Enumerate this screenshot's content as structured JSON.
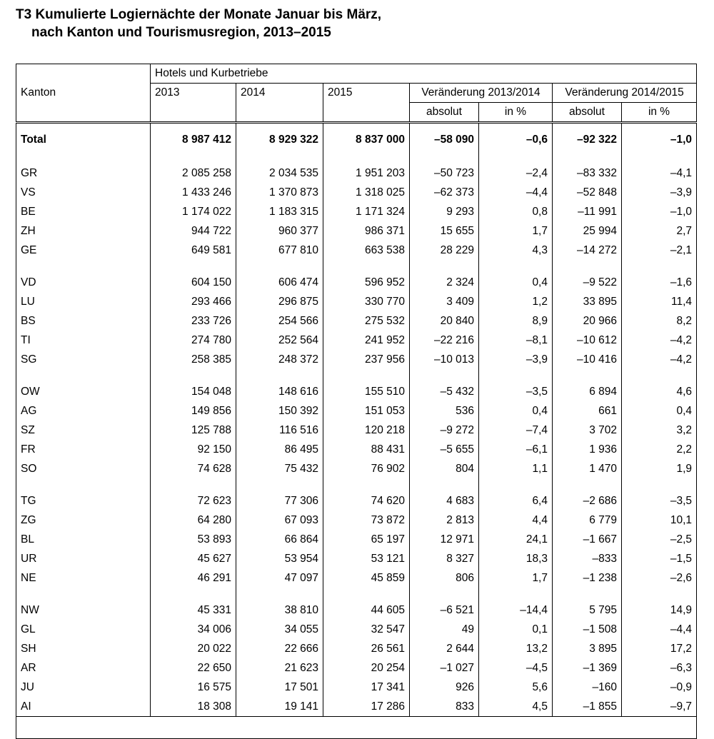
{
  "title": {
    "line1": "T3 Kumulierte Logiernächte der Monate Januar bis März,",
    "line2": "nach Kanton und Tourismusregion, 2013–2015"
  },
  "header": {
    "kanton": "Kanton",
    "group": "Hotels und Kurbetriebe",
    "y2013": "2013",
    "y2014": "2014",
    "y2015": "2015",
    "chg1": "Veränderung 2013/2014",
    "chg2": "Veränderung 2014/2015",
    "abs": "absolut",
    "pct": "in %"
  },
  "total": [
    "Total",
    "8 987 412",
    "8 929 322",
    "8 837 000",
    "–58 090",
    "–0,6",
    "–92 322",
    "–1,0"
  ],
  "groups": [
    [
      [
        "GR",
        "2 085 258",
        "2 034 535",
        "1 951 203",
        "–50 723",
        "–2,4",
        "–83 332",
        "–4,1"
      ],
      [
        "VS",
        "1 433 246",
        "1 370 873",
        "1 318 025",
        "–62 373",
        "–4,4",
        "–52 848",
        "–3,9"
      ],
      [
        "BE",
        "1 174 022",
        "1 183 315",
        "1 171 324",
        "9 293",
        "0,8",
        "–11 991",
        "–1,0"
      ],
      [
        "ZH",
        "944 722",
        "960 377",
        "986 371",
        "15 655",
        "1,7",
        "25 994",
        "2,7"
      ],
      [
        "GE",
        "649 581",
        "677 810",
        "663 538",
        "28 229",
        "4,3",
        "–14 272",
        "–2,1"
      ]
    ],
    [
      [
        "VD",
        "604 150",
        "606 474",
        "596 952",
        "2 324",
        "0,4",
        "–9 522",
        "–1,6"
      ],
      [
        "LU",
        "293 466",
        "296 875",
        "330 770",
        "3 409",
        "1,2",
        "33 895",
        "11,4"
      ],
      [
        "BS",
        "233 726",
        "254 566",
        "275 532",
        "20 840",
        "8,9",
        "20 966",
        "8,2"
      ],
      [
        "TI",
        "274 780",
        "252 564",
        "241 952",
        "–22 216",
        "–8,1",
        "–10 612",
        "–4,2"
      ],
      [
        "SG",
        "258 385",
        "248 372",
        "237 956",
        "–10 013",
        "–3,9",
        "–10 416",
        "–4,2"
      ]
    ],
    [
      [
        "OW",
        "154 048",
        "148 616",
        "155 510",
        "–5 432",
        "–3,5",
        "6 894",
        "4,6"
      ],
      [
        "AG",
        "149 856",
        "150 392",
        "151 053",
        "536",
        "0,4",
        "661",
        "0,4"
      ],
      [
        "SZ",
        "125 788",
        "116 516",
        "120 218",
        "–9 272",
        "–7,4",
        "3 702",
        "3,2"
      ],
      [
        "FR",
        "92 150",
        "86 495",
        "88 431",
        "–5 655",
        "–6,1",
        "1 936",
        "2,2"
      ],
      [
        "SO",
        "74 628",
        "75 432",
        "76 902",
        "804",
        "1,1",
        "1 470",
        "1,9"
      ]
    ],
    [
      [
        "TG",
        "72 623",
        "77 306",
        "74 620",
        "4 683",
        "6,4",
        "–2 686",
        "–3,5"
      ],
      [
        "ZG",
        "64 280",
        "67 093",
        "73 872",
        "2 813",
        "4,4",
        "6 779",
        "10,1"
      ],
      [
        "BL",
        "53 893",
        "66 864",
        "65 197",
        "12 971",
        "24,1",
        "–1 667",
        "–2,5"
      ],
      [
        "UR",
        "45 627",
        "53 954",
        "53 121",
        "8 327",
        "18,3",
        "–833",
        "–1,5"
      ],
      [
        "NE",
        "46 291",
        "47 097",
        "45 859",
        "806",
        "1,7",
        "–1 238",
        "–2,6"
      ]
    ],
    [
      [
        "NW",
        "45 331",
        "38 810",
        "44 605",
        "–6 521",
        "–14,4",
        "5 795",
        "14,9"
      ],
      [
        "GL",
        "34 006",
        "34 055",
        "32 547",
        "49",
        "0,1",
        "–1 508",
        "–4,4"
      ],
      [
        "SH",
        "20 022",
        "22 666",
        "26 561",
        "2 644",
        "13,2",
        "3 895",
        "17,2"
      ],
      [
        "AR",
        "22 650",
        "21 623",
        "20 254",
        "–1 027",
        "–4,5",
        "–1 369",
        "–6,3"
      ],
      [
        "JU",
        "16 575",
        "17 501",
        "17 341",
        "926",
        "5,6",
        "–160",
        "–0,9"
      ],
      [
        "AI",
        "18 308",
        "19 141",
        "17 286",
        "833",
        "4,5",
        "–1 855",
        "–9,7"
      ]
    ]
  ]
}
